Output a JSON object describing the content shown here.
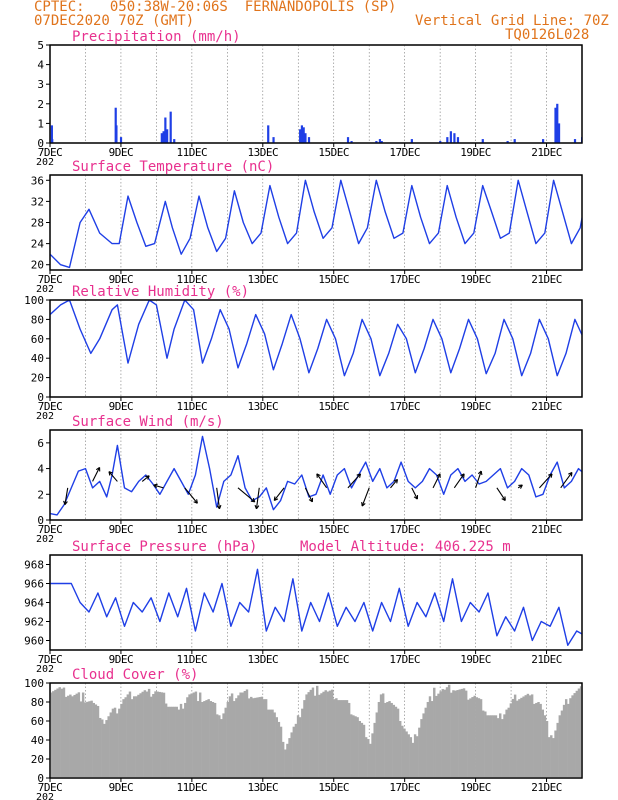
{
  "header": {
    "line1": "CPTEC:   050:38W-20:06S  FERNANDOPOLIS (SP)",
    "line2": "07DEC2020 70Z (GMT)",
    "grid_note": "Vertical Grid Line: 70Z",
    "run_code": "TQ0126L028",
    "model_altitude": "Model Altitude: 406.225 m",
    "year_fragment": "202"
  },
  "colors": {
    "header": "#e0741c",
    "panel_title": "#e8318f",
    "series": "#1f3fe6",
    "cloud": "#a8a8a8",
    "grid": "#7a7a7a"
  },
  "chart_data": [
    {
      "id": "precip",
      "type": "bar",
      "title": "Precipitation (mm/h)",
      "ylim": [
        0,
        5
      ],
      "yticks": [
        "0",
        "1",
        "2",
        "3",
        "4",
        "5"
      ],
      "x": [
        0.05,
        0.06,
        1.85,
        1.87,
        2.0,
        3.15,
        3.2,
        3.25,
        3.3,
        3.4,
        3.5,
        6.15,
        6.3,
        7.05,
        7.1,
        7.15,
        7.2,
        7.3,
        8.4,
        8.5,
        9.2,
        9.3,
        9.35,
        10.2,
        11.0,
        11.2,
        11.3,
        11.4,
        11.5,
        12.2,
        12.9,
        13.1,
        13.9,
        14.25,
        14.3,
        14.35,
        14.8,
        15.0,
        15.1,
        15.15,
        15.2,
        15.5,
        15.6,
        15.7,
        16.1,
        16.6,
        16.62
      ],
      "values": [
        0.9,
        0.2,
        1.8,
        0.9,
        0.3,
        0.5,
        0.6,
        1.3,
        0.7,
        1.6,
        0.2,
        0.9,
        0.3,
        0.7,
        0.9,
        0.8,
        0.5,
        0.3,
        0.3,
        0.1,
        0.1,
        0.2,
        0.1,
        0.2,
        0.1,
        0.3,
        0.6,
        0.5,
        0.3,
        0.2,
        0.1,
        0.2,
        0.2,
        1.8,
        2.0,
        1.0,
        0.2,
        0.3,
        0.4,
        0.2,
        0.1,
        0.3,
        2.1,
        1.6,
        0.2,
        0.2,
        0.4
      ],
      "xticks": [
        "7DEC",
        "9DEC",
        "11DEC",
        "13DEC",
        "15DEC",
        "17DEC",
        "19DEC",
        "21DEC"
      ]
    },
    {
      "id": "temp",
      "type": "line",
      "title": "Surface Temperature (nC)",
      "ylim": [
        19,
        37
      ],
      "yticks": [
        "20",
        "24",
        "28",
        "32",
        "36"
      ],
      "x": [
        0,
        0.3,
        0.55,
        0.85,
        1.1,
        1.4,
        1.75,
        1.95,
        2.2,
        2.45,
        2.7,
        2.95,
        3.25,
        3.45,
        3.7,
        3.95,
        4.2,
        4.45,
        4.7,
        4.95,
        5.2,
        5.45,
        5.7,
        5.95,
        6.2,
        6.45,
        6.7,
        6.95,
        7.2,
        7.45,
        7.7,
        7.95,
        8.2,
        8.45,
        8.7,
        8.95,
        9.2,
        9.45,
        9.7,
        9.95,
        10.2,
        10.45,
        10.7,
        10.95,
        11.2,
        11.45,
        11.7,
        11.95,
        12.2,
        12.45,
        12.7,
        12.95,
        13.2,
        13.45,
        13.7,
        13.95,
        14.2,
        14.45,
        14.7,
        14.95,
        15.2,
        15.45,
        15.7,
        15.95,
        16.2,
        16.45,
        16.7,
        16.95,
        17.2,
        17.45,
        17.7,
        17.95,
        18.2,
        18.45,
        18.7,
        18.95,
        19.2,
        19.45,
        19.7,
        19.95,
        20.2,
        20.45,
        20.7,
        21.0
      ],
      "values": [
        22,
        20,
        19.5,
        28,
        30.5,
        26,
        24,
        24,
        33,
        28,
        23.5,
        24,
        32,
        27,
        22,
        25,
        33,
        27,
        22.5,
        25,
        34,
        28,
        24,
        26,
        35,
        29,
        24,
        26,
        36,
        30,
        25,
        27,
        36,
        30,
        24,
        27,
        36,
        30,
        25,
        26,
        35,
        29,
        24,
        26,
        35,
        29,
        24,
        26,
        35,
        30,
        25,
        26,
        36,
        30,
        24,
        26,
        36,
        30,
        24,
        27,
        36,
        30,
        25,
        26,
        36.5,
        30,
        24,
        27,
        36.5,
        30,
        24,
        26,
        35,
        30,
        25,
        25,
        34,
        28,
        23,
        22,
        28,
        30,
        27,
        25.5
      ],
      "xticks": [
        "7DEC",
        "9DEC",
        "11DEC",
        "13DEC",
        "15DEC",
        "17DEC",
        "19DEC",
        "21DEC"
      ]
    },
    {
      "id": "rh",
      "type": "line",
      "title": "Relative Humidity (%)",
      "ylim": [
        0,
        100
      ],
      "yticks": [
        "0",
        "20",
        "40",
        "60",
        "80",
        "100"
      ],
      "x": [
        0,
        0.3,
        0.55,
        0.85,
        1.15,
        1.4,
        1.75,
        1.9,
        2.2,
        2.5,
        2.8,
        3.0,
        3.3,
        3.5,
        3.8,
        4.05,
        4.3,
        4.55,
        4.8,
        5.05,
        5.3,
        5.55,
        5.8,
        6.05,
        6.3,
        6.55,
        6.8,
        7.05,
        7.3,
        7.55,
        7.8,
        8.05,
        8.3,
        8.55,
        8.8,
        9.05,
        9.3,
        9.55,
        9.8,
        10.05,
        10.3,
        10.55,
        10.8,
        11.05,
        11.3,
        11.55,
        11.8,
        12.05,
        12.3,
        12.55,
        12.8,
        13.05,
        13.3,
        13.55,
        13.8,
        14.05,
        14.3,
        14.55,
        14.8,
        15.05,
        15.3,
        15.55,
        15.8,
        16.05,
        16.3,
        16.55,
        16.8,
        17.05,
        17.3,
        17.55,
        17.8,
        18.05,
        18.3,
        18.55,
        18.8,
        19.05,
        19.3,
        19.55,
        19.8,
        20.05,
        20.3,
        20.55,
        20.8,
        21.0
      ],
      "values": [
        85,
        95,
        100,
        70,
        45,
        60,
        90,
        95,
        35,
        75,
        100,
        95,
        40,
        70,
        100,
        90,
        35,
        60,
        90,
        70,
        30,
        55,
        85,
        65,
        28,
        55,
        85,
        60,
        25,
        50,
        80,
        60,
        22,
        45,
        80,
        60,
        22,
        45,
        75,
        60,
        25,
        50,
        80,
        60,
        25,
        50,
        80,
        60,
        24,
        45,
        80,
        60,
        22,
        45,
        80,
        60,
        22,
        45,
        80,
        60,
        20,
        45,
        80,
        60,
        22,
        45,
        80,
        60,
        22,
        48,
        85,
        65,
        25,
        55,
        85,
        70,
        30,
        65,
        95,
        100,
        55,
        75,
        45,
        65
      ],
      "xticks": [
        "7DEC",
        "9DEC",
        "11DEC",
        "13DEC",
        "15DEC",
        "17DEC",
        "19DEC",
        "21DEC"
      ]
    },
    {
      "id": "wind",
      "type": "line",
      "title": "Surface Wind (m/s)",
      "ylim": [
        0,
        7
      ],
      "yticks": [
        "0",
        "2",
        "4",
        "6"
      ],
      "x": [
        0,
        0.2,
        0.4,
        0.6,
        0.8,
        1.0,
        1.2,
        1.4,
        1.6,
        1.75,
        1.9,
        2.1,
        2.3,
        2.5,
        2.7,
        2.9,
        3.1,
        3.3,
        3.5,
        3.7,
        3.9,
        4.1,
        4.3,
        4.5,
        4.7,
        4.9,
        5.1,
        5.3,
        5.5,
        5.7,
        5.9,
        6.1,
        6.3,
        6.5,
        6.7,
        6.9,
        7.1,
        7.3,
        7.5,
        7.7,
        7.9,
        8.1,
        8.3,
        8.5,
        8.7,
        8.9,
        9.1,
        9.3,
        9.5,
        9.7,
        9.9,
        10.1,
        10.3,
        10.5,
        10.7,
        10.9,
        11.1,
        11.3,
        11.5,
        11.7,
        11.9,
        12.1,
        12.3,
        12.5,
        12.7,
        12.9,
        13.1,
        13.3,
        13.5,
        13.7,
        13.9,
        14.1,
        14.3,
        14.5,
        14.7,
        14.9,
        15.1,
        15.3,
        15.5,
        15.7,
        15.9,
        16.1,
        16.3,
        16.5,
        16.7,
        16.9,
        17.1,
        17.3,
        17.5,
        17.7,
        17.9,
        18.1,
        18.3,
        18.5,
        18.7,
        18.9,
        19.1,
        19.3,
        19.5,
        19.7,
        19.9,
        20.1,
        20.3,
        20.5,
        20.7,
        20.9,
        21.0
      ],
      "values": [
        0.5,
        0.4,
        1.2,
        2.5,
        3.8,
        4.0,
        2.5,
        3.0,
        1.8,
        3.5,
        5.8,
        2.5,
        2.2,
        3.0,
        3.5,
        2.8,
        2.0,
        3.0,
        4.0,
        3.0,
        2.0,
        3.5,
        6.5,
        4.0,
        1.0,
        3.0,
        3.5,
        5.0,
        2.5,
        1.5,
        1.8,
        2.5,
        0.8,
        1.5,
        3.0,
        2.8,
        3.5,
        1.8,
        2.0,
        3.5,
        2.0,
        3.5,
        4.0,
        2.5,
        3.5,
        4.5,
        3.0,
        4.0,
        2.5,
        3.0,
        4.5,
        3.0,
        2.5,
        3.0,
        4.0,
        3.5,
        2.0,
        3.5,
        4.0,
        3.0,
        3.5,
        2.8,
        3.0,
        3.5,
        4.0,
        2.5,
        3.0,
        4.0,
        3.5,
        1.8,
        2.0,
        3.5,
        4.5,
        2.5,
        3.0,
        4.0,
        3.5,
        3.0,
        3.5,
        2.5,
        6.8,
        5.0,
        2.5,
        3.5,
        4.0,
        3.0,
        4.0,
        4.5,
        3.0,
        3.5,
        2.0,
        3.0,
        4.0,
        3.5,
        2.5,
        4.0,
        3.5,
        2.5,
        3.0,
        4.0,
        3.0,
        2.5,
        3.5,
        4.0,
        4.2,
        3.0,
        2.8
      ],
      "arrows": {
        "x": [
          0.5,
          1.2,
          1.9,
          2.6,
          3.2,
          3.8,
          4.7,
          5.3,
          5.9,
          6.6,
          7.2,
          7.8,
          8.4,
          9.0,
          9.6,
          10.2,
          10.8,
          11.4,
          12.0,
          12.6,
          13.2,
          13.8,
          14.4,
          15.0,
          15.6,
          16.2,
          16.8,
          17.4,
          18.0,
          18.6,
          19.2,
          19.8,
          20.4,
          21.0
        ],
        "y": [
          2.5,
          3.0,
          3.0,
          3.0,
          2.5,
          2.5,
          2.5,
          2.5,
          2.5,
          2.5,
          2.5,
          2.5,
          2.5,
          2.5,
          2.5,
          2.5,
          2.5,
          2.5,
          2.5,
          2.5,
          2.5,
          2.5,
          2.5,
          2.5,
          2.5,
          2.5,
          3.0,
          3.0,
          3.0,
          3.0,
          3.0,
          3.0,
          3.0,
          3.0
        ],
        "u": [
          -0.2,
          0.5,
          -0.6,
          0.5,
          -0.7,
          0.9,
          0.2,
          1.2,
          -0.2,
          -0.7,
          0.5,
          -0.7,
          0.9,
          -0.5,
          0.5,
          0.4,
          0.5,
          0.7,
          0.4,
          0.6,
          0.3,
          0.9,
          0.8,
          0.4,
          0.4,
          0.5,
          -0.4,
          0.5,
          -0.5,
          -0.8,
          0.4,
          -0.5,
          0.4,
          -0.4
        ],
        "v": [
          -1.2,
          1.0,
          0.7,
          0.4,
          0.2,
          -1.1,
          -1.5,
          -1.0,
          -1.5,
          -0.9,
          -1.0,
          1.0,
          1.0,
          -1.3,
          0.6,
          -0.8,
          1.0,
          1.0,
          1.2,
          -0.9,
          0.2,
          1.0,
          1.1,
          1.0,
          -0.2,
          0.6,
          -1.0,
          0.3,
          -1.1,
          0.9,
          0.8,
          -0.9,
          0.2,
          -1.0
        ]
      },
      "xticks": [
        "7DEC",
        "9DEC",
        "11DEC",
        "13DEC",
        "15DEC",
        "17DEC",
        "19DEC",
        "21DEC"
      ]
    },
    {
      "id": "pres",
      "type": "line",
      "title": "Surface Pressure (hPa)",
      "ylim": [
        959,
        969
      ],
      "yticks": [
        "960",
        "962",
        "964",
        "966",
        "968"
      ],
      "x": [
        0,
        0.3,
        0.6,
        0.85,
        1.1,
        1.35,
        1.6,
        1.85,
        2.1,
        2.35,
        2.6,
        2.85,
        3.1,
        3.35,
        3.6,
        3.85,
        4.1,
        4.35,
        4.6,
        4.85,
        5.1,
        5.35,
        5.6,
        5.85,
        6.1,
        6.35,
        6.6,
        6.85,
        7.1,
        7.35,
        7.6,
        7.85,
        8.1,
        8.35,
        8.6,
        8.85,
        9.1,
        9.35,
        9.6,
        9.85,
        10.1,
        10.35,
        10.6,
        10.85,
        11.1,
        11.35,
        11.6,
        11.85,
        12.1,
        12.35,
        12.6,
        12.85,
        13.1,
        13.35,
        13.6,
        13.85,
        14.1,
        14.35,
        14.6,
        14.85,
        15.1,
        15.35,
        15.6,
        15.85,
        16.1,
        16.35,
        16.6,
        16.85,
        17.1,
        17.35,
        17.6,
        17.85,
        18.1,
        18.35,
        18.6,
        18.85,
        19.1,
        19.35,
        19.6,
        19.85,
        20.1,
        20.35,
        20.6,
        20.85,
        21.0
      ],
      "values": [
        966,
        966,
        966,
        964,
        963,
        965,
        962.5,
        964.5,
        961.5,
        964,
        963,
        964.5,
        962,
        965,
        962.5,
        965.5,
        961,
        965,
        963,
        966,
        961.5,
        964,
        963,
        967.5,
        961,
        963.5,
        962,
        966.5,
        961,
        964,
        962,
        965,
        961.5,
        963.5,
        962,
        964,
        961,
        964,
        962,
        965.5,
        961.5,
        964,
        962.5,
        965,
        962,
        966.5,
        962,
        964,
        963,
        965,
        960.5,
        962.5,
        961,
        963.5,
        960,
        962,
        961.5,
        963.5,
        959.5,
        961,
        960.5,
        962,
        958.5,
        960,
        959,
        961,
        958,
        959.5,
        958.5,
        960,
        958,
        959.5,
        958.5,
        960,
        958,
        959.5,
        958.5,
        960,
        958,
        959.5,
        958.5,
        960,
        958.5,
        960,
        960.5
      ],
      "xticks": [
        "7DEC",
        "9DEC",
        "11DEC",
        "13DEC",
        "15DEC",
        "17DEC",
        "19DEC",
        "21DEC"
      ]
    },
    {
      "id": "cloud",
      "type": "area",
      "title": "Cloud Cover (%)",
      "ylim": [
        0,
        100
      ],
      "yticks": [
        "0",
        "20",
        "40",
        "60",
        "80",
        "100"
      ],
      "x": [
        0,
        0.3,
        0.6,
        0.9,
        1.2,
        1.5,
        1.8,
        2.1,
        2.4,
        2.7,
        3.0,
        3.3,
        3.6,
        3.9,
        4.2,
        4.5,
        4.8,
        5.1,
        5.4,
        5.7,
        6.0,
        6.3,
        6.6,
        6.9,
        7.2,
        7.5,
        7.8,
        8.1,
        8.4,
        8.7,
        9.0,
        9.3,
        9.6,
        9.9,
        10.2,
        10.5,
        10.8,
        11.1,
        11.4,
        11.7,
        12.0,
        12.3,
        12.6,
        12.9,
        13.2,
        13.5,
        13.8,
        14.1,
        14.4,
        14.7,
        15.0,
        15.3,
        15.6,
        15.9,
        16.2,
        16.5,
        16.8,
        17.1,
        17.4,
        17.7,
        18.0,
        18.3,
        18.6,
        18.9,
        19.2,
        19.5,
        19.8,
        20.1,
        20.4,
        20.7,
        21.0
      ],
      "values": [
        95,
        92,
        88,
        85,
        78,
        60,
        70,
        85,
        90,
        88,
        92,
        80,
        70,
        90,
        85,
        80,
        65,
        85,
        90,
        88,
        80,
        70,
        35,
        55,
        90,
        92,
        90,
        85,
        75,
        60,
        40,
        85,
        80,
        60,
        35,
        70,
        90,
        92,
        95,
        88,
        85,
        70,
        60,
        75,
        88,
        85,
        80,
        40,
        70,
        90,
        92,
        88,
        80,
        60,
        70,
        88,
        92,
        95,
        95,
        95,
        98,
        98,
        95,
        96,
        98,
        98,
        97,
        95,
        92,
        90,
        88
      ],
      "xticks": [
        "7DEC",
        "9DEC",
        "11DEC",
        "13DEC",
        "15DEC",
        "17DEC",
        "19DEC",
        "21DEC"
      ]
    }
  ]
}
